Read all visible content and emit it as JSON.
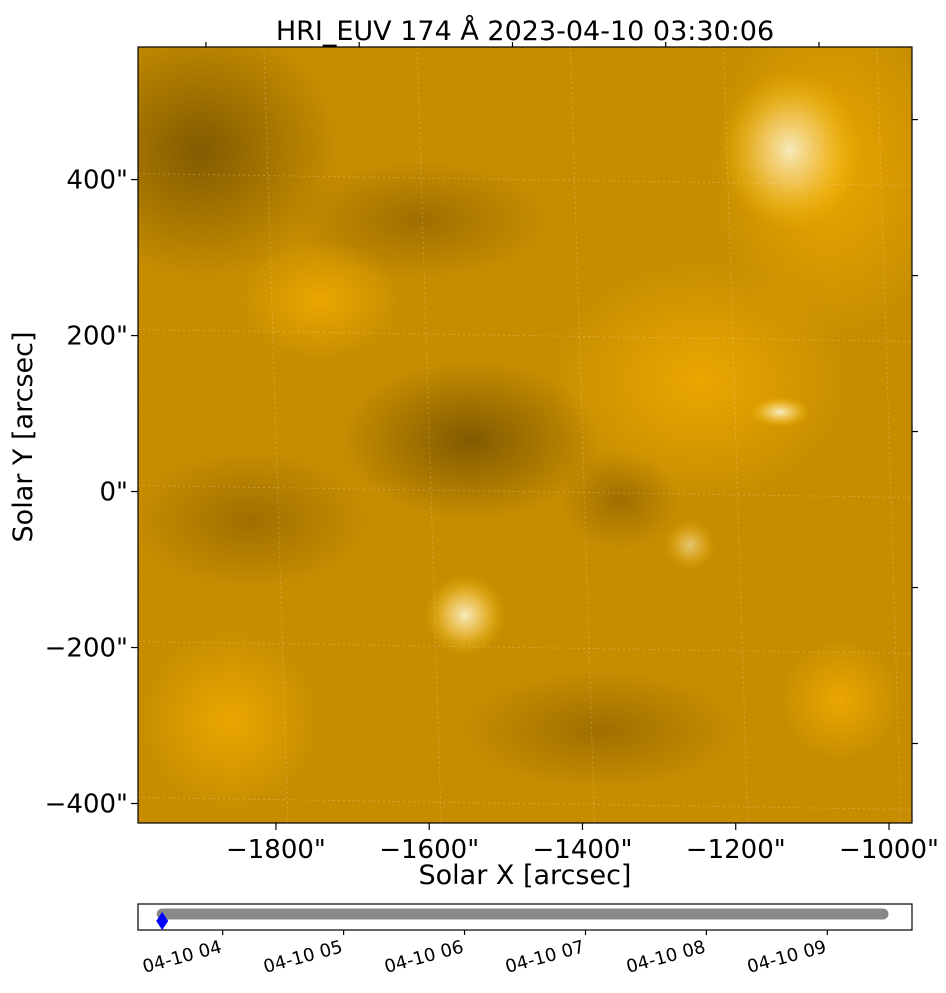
{
  "chart_data": {
    "type": "heatmap",
    "title": "HRI_EUV 174 Å 2023-04-10 03:30:06",
    "xlabel": "Solar X [arcsec]",
    "ylabel": "Solar Y [arcsec]",
    "colormap": "solar-orbiter-hri-euv-174 (dark brown → orange → pale yellow)",
    "xlim": [
      -1980,
      -970
    ],
    "ylim": [
      -425,
      570
    ],
    "xticks": [
      -1800,
      -1600,
      -1400,
      -1200,
      -1000
    ],
    "xtick_labels": [
      "−1800\"",
      "−1600\"",
      "−1400\"",
      "−1200\"",
      "−1000\""
    ],
    "yticks": [
      400,
      200,
      0,
      -200,
      -400
    ],
    "ytick_labels": [
      "400\"",
      "200\"",
      "0\"",
      "−200\"",
      "−400\""
    ],
    "grid": true,
    "features": [
      {
        "x": -1550,
        "y": -155,
        "kind": "bright point"
      },
      {
        "x": -1060,
        "y": 440,
        "kind": "bright region"
      },
      {
        "x": -1150,
        "y": 100,
        "kind": "bright loop"
      }
    ],
    "timeline": {
      "type": "timeline",
      "xtick_labels": [
        "04-10 04",
        "04-10 05",
        "04-10 06",
        "04-10 07",
        "04-10 08",
        "04-10 09"
      ],
      "range_hours": [
        3.3,
        9.7
      ],
      "series": [
        {
          "start": 3.5,
          "end": 9.46,
          "color": "#888888"
        }
      ],
      "current": {
        "x": 3.5,
        "label": "2023-04-10 03:30:06",
        "color": "#0000ff",
        "marker": "diamond"
      }
    }
  }
}
